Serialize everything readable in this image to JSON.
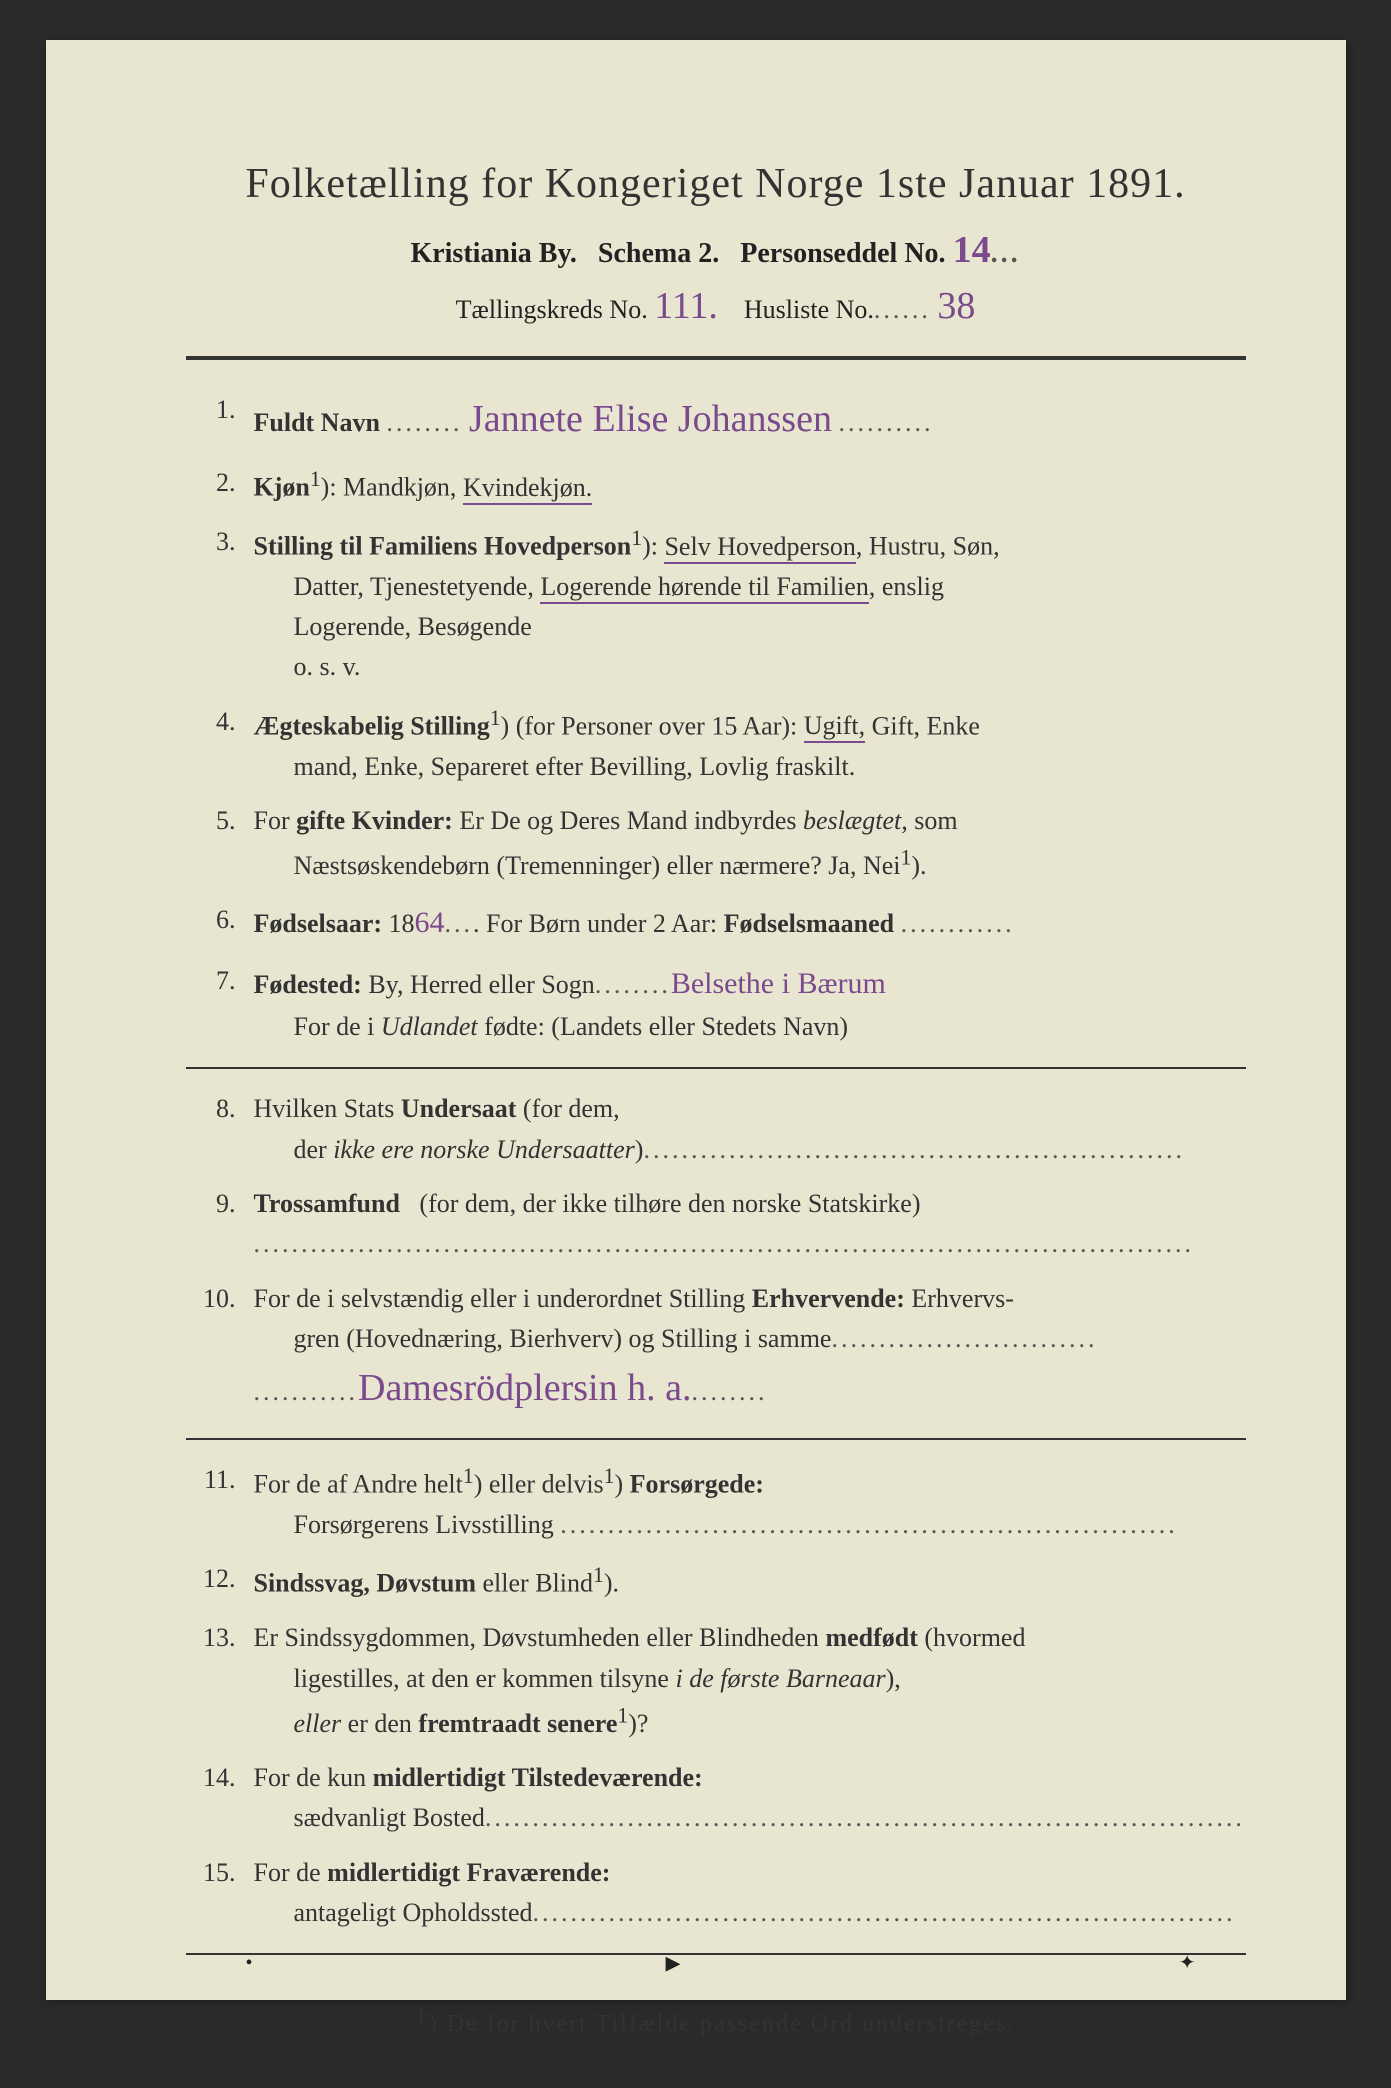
{
  "colors": {
    "paper": "#e8e6d0",
    "print": "#333333",
    "handwriting": "#7a4a8c",
    "background": "#2a2a2a"
  },
  "typography": {
    "title_fontsize": 42,
    "subtitle_fontsize": 28,
    "body_fontsize": 26,
    "handwriting_fontsize": 38,
    "footnote_fontsize": 24
  },
  "header": {
    "title": "Folketælling for Kongeriget Norge 1ste Januar 1891.",
    "line2_a": "Kristiania By.",
    "line2_b": "Schema 2.",
    "line2_c": "Personseddel No.",
    "personseddel_no": "14",
    "line3_a": "Tællingskreds No.",
    "kreds_no": "111.",
    "line3_b": "Husliste No.",
    "husliste_no": "38"
  },
  "items": {
    "1": {
      "num": "1.",
      "label": "Fuldt Navn",
      "value": "Jannete Elise Johanssen"
    },
    "2": {
      "num": "2.",
      "label": "Kjøn",
      "sup": "1",
      "rest": "): Mandkjøn, ",
      "underlined": "Kvindekjøn."
    },
    "3": {
      "num": "3.",
      "label": "Stilling til Familiens Hovedperson",
      "sup": "1",
      "rest_a": "): ",
      "u1": "Selv Hovedperson",
      "rest_b": ", Hustru, Søn,",
      "line2_a": "Datter, Tjenestetyende, ",
      "u2": "Logerende hørende til Familien",
      "line2_b": ", enslig",
      "line3": "Logerende, Besøgende",
      "line4": "o. s. v."
    },
    "4": {
      "num": "4.",
      "label": "Ægteskabelig Stilling",
      "sup": "1",
      "rest_a": ") (for Personer over 15 Aar): ",
      "u1": "Ugift,",
      "rest_b": " Gift, Enke",
      "line2": "mand, Enke, Separeret efter Bevilling, Lovlig fraskilt."
    },
    "5": {
      "num": "5.",
      "line1_a": "For ",
      "label": "gifte Kvinder:",
      "line1_b": " Er De og Deres Mand indbyrdes ",
      "ital": "beslægtet,",
      "line1_c": " som",
      "line2": "Næstsøskendebørn (Tremenninger) eller nærmere? Ja, Nei",
      "sup": "1",
      "rest": ")."
    },
    "6": {
      "num": "6.",
      "label": "Fødselsaar:",
      "prefix": " 18",
      "year": "64",
      "rest": ". For Børn under 2 Aar: ",
      "label2": "Fødselsmaaned"
    },
    "7": {
      "num": "7.",
      "label": "Fødested:",
      "rest": " By, Herred eller Sogn",
      "value": "Belsethe i Bærum",
      "line2": "For de i ",
      "ital": "Udlandet",
      "line2b": " fødte: (Landets eller Stedets Navn)"
    },
    "8": {
      "num": "8.",
      "line1": "Hvilken Stats ",
      "label": "Undersaat",
      "line1b": " (for dem,",
      "line2": "der ",
      "ital": "ikke ere norske Undersaatter",
      "line2b": ")"
    },
    "9": {
      "num": "9.",
      "label": "Trossamfund",
      "rest": " (for dem, der ikke tilhøre den norske Statskirke)"
    },
    "10": {
      "num": "10.",
      "line1": "For de i selvstændig eller i underordnet Stilling ",
      "label": "Erhvervende:",
      "line1b": " Erhvervs-",
      "line2": "gren (Hovednæring, Bierhverv) og Stilling i samme",
      "value": "Damesrödplersin h. a."
    },
    "11": {
      "num": "11.",
      "line1": "For de af Andre helt",
      "sup1": "1",
      "mid": ") eller delvis",
      "sup2": "1",
      "end": ") ",
      "label": "Forsørgede:",
      "line2": "Forsørgerens Livsstilling"
    },
    "12": {
      "num": "12.",
      "label": "Sindssvag, Døvstum",
      "rest": " eller Blind",
      "sup": "1",
      "end": ")."
    },
    "13": {
      "num": "13.",
      "line1": "Er Sindssygdommen, Døvstumheden eller Blindheden ",
      "label": "medfødt",
      "line1b": " (hvormed",
      "line2": "ligestilles, at den er kommen tilsyne ",
      "ital": "i de første Barneaar",
      "line2b": "),",
      "line3a": "eller",
      "line3b": " er den ",
      "label2": "fremtraadt senere",
      "sup": "1",
      "end": ")?"
    },
    "14": {
      "num": "14.",
      "line1": "For de kun ",
      "label": "midlertidigt Tilstedeværende:",
      "line2": "sædvanligt Bosted"
    },
    "15": {
      "num": "15.",
      "line1": "For de ",
      "label": "midlertidigt Fraværende:",
      "line2": "antageligt Opholdssted"
    }
  },
  "footnote": {
    "sup": "1",
    "text": ") De for hvert Tilfælde passende Ord understreges."
  }
}
